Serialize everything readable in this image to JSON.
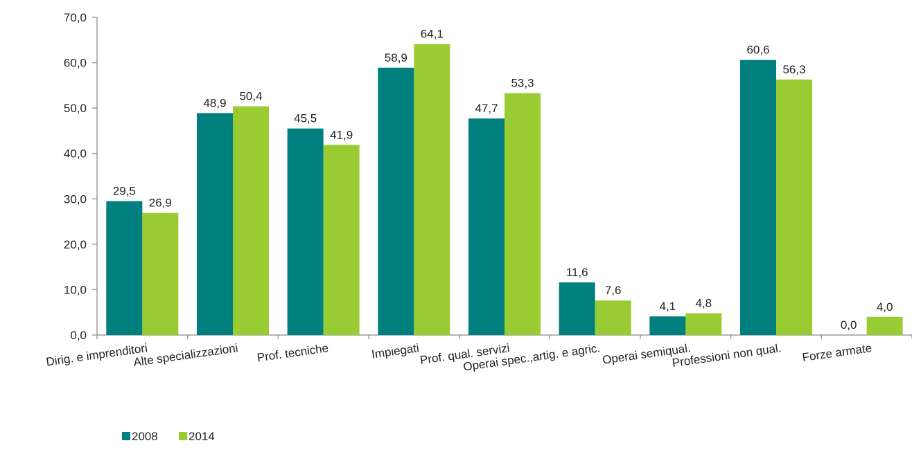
{
  "chart_data": {
    "type": "bar",
    "categories": [
      "Dirig. e imprenditori",
      "Alte specializzazioni",
      "Prof. tecniche",
      "Impiegati",
      "Prof. qual. servizi",
      "Operai spec.,artig. e agric.",
      "Operai semiqual.",
      "Professioni non qual.",
      "Forze armate"
    ],
    "series": [
      {
        "name": "2008",
        "color": "#007f7f",
        "values": [
          29.5,
          48.9,
          45.5,
          58.9,
          47.7,
          11.6,
          4.1,
          60.6,
          0.0
        ],
        "labels": [
          "29,5",
          "48,9",
          "45,5",
          "58,9",
          "47,7",
          "11,6",
          "4,1",
          "60,6",
          "0,0"
        ]
      },
      {
        "name": "2014",
        "color": "#99cc33",
        "values": [
          26.9,
          50.4,
          41.9,
          64.1,
          53.3,
          7.6,
          4.8,
          56.3,
          4.0
        ],
        "labels": [
          "26,9",
          "50,4",
          "41,9",
          "64,1",
          "53,3",
          "7,6",
          "4,8",
          "56,3",
          "4,0"
        ]
      }
    ],
    "ylim": [
      0,
      70
    ],
    "yticks": [
      "0,0",
      "10,0",
      "20,0",
      "30,0",
      "40,0",
      "50,0",
      "60,0",
      "70,0"
    ],
    "title": "",
    "xlabel": "",
    "ylabel": "",
    "grid": false,
    "legend_position": "bottom-left"
  }
}
